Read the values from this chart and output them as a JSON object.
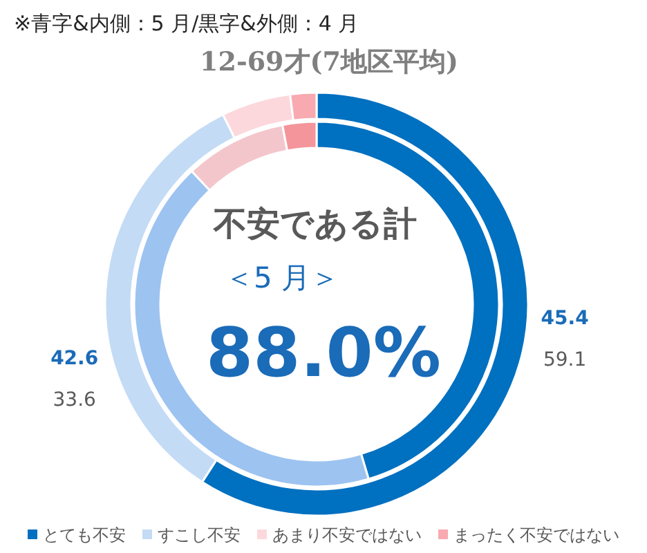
{
  "chart_data": {
    "type": "donut",
    "title": "12-69才(7地区平均)",
    "annotations": [
      "※青字&内側：5 月/黒字&外側：4 月",
      "不安である計",
      "＜5 月＞",
      "88.0%"
    ],
    "categories": [
      "とても不安",
      "すこし不安",
      "あまり不安ではない",
      "まったく不安ではない"
    ],
    "series": [
      {
        "values": [
          45.4,
          42.6,
          9.0,
          3.0
        ],
        "colors": [
          "#0070c0",
          "#9dc3f0",
          "#f3c6cc",
          "#f4959c"
        ],
        "value_labels": [
          "45.4",
          "42.6",
          null,
          null
        ]
      },
      {
        "values": [
          59.1,
          33.6,
          5.3,
          2.0
        ],
        "colors": [
          "#0070c0",
          "#c3dbf5",
          "#fcd8dc",
          "#f8aab0"
        ],
        "value_labels": [
          "59.1",
          "33.6",
          null,
          null
        ]
      }
    ],
    "legend": "bottom"
  }
}
